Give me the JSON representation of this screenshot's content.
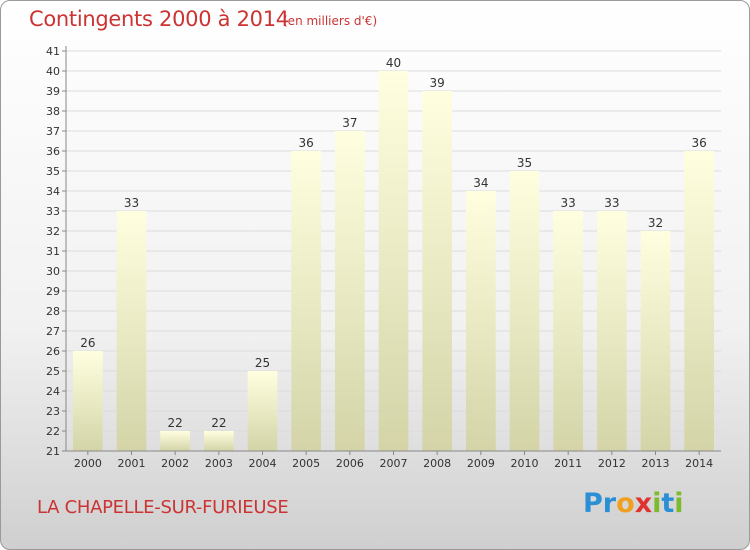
{
  "header": {
    "title": "Contingents 2000 à 2014",
    "subtitle": "(en milliers d'€)"
  },
  "footer": {
    "commune": "LA CHAPELLE-SUR-FURIEUSE",
    "logo": {
      "letters": [
        "P",
        "r",
        "o",
        "x",
        "i",
        "t",
        "i"
      ],
      "colors": [
        "#2b8fd6",
        "#2b8fd6",
        "#f0a020",
        "#e0322f",
        "#7dbb2e",
        "#2b8fd6",
        "#7dbb2e"
      ]
    }
  },
  "chart_data": {
    "type": "bar",
    "title": "Contingents 2000 à 2014",
    "subtitle": "(en milliers d'€)",
    "categories": [
      "2000",
      "2001",
      "2002",
      "2003",
      "2004",
      "2005",
      "2006",
      "2007",
      "2008",
      "2009",
      "2010",
      "2011",
      "2012",
      "2013",
      "2014"
    ],
    "values": [
      26,
      33,
      22,
      22,
      25,
      36,
      37,
      40,
      39,
      34,
      35,
      33,
      33,
      32,
      36
    ],
    "ylim": [
      21,
      41
    ],
    "yticks": [
      21,
      22,
      23,
      24,
      25,
      26,
      27,
      28,
      29,
      30,
      31,
      32,
      33,
      34,
      35,
      36,
      37,
      38,
      39,
      40,
      41
    ],
    "grid": true,
    "bar_color_top": "#ffffe0",
    "bar_color_bottom": "#d4d4a8"
  }
}
